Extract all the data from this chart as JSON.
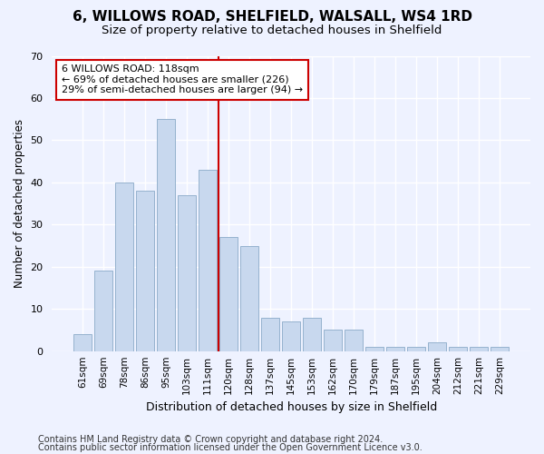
{
  "title1": "6, WILLOWS ROAD, SHELFIELD, WALSALL, WS4 1RD",
  "title2": "Size of property relative to detached houses in Shelfield",
  "xlabel": "Distribution of detached houses by size in Shelfield",
  "ylabel": "Number of detached properties",
  "categories": [
    "61sqm",
    "69sqm",
    "78sqm",
    "86sqm",
    "95sqm",
    "103sqm",
    "111sqm",
    "120sqm",
    "128sqm",
    "137sqm",
    "145sqm",
    "153sqm",
    "162sqm",
    "170sqm",
    "179sqm",
    "187sqm",
    "195sqm",
    "204sqm",
    "212sqm",
    "221sqm",
    "229sqm"
  ],
  "values": [
    4,
    19,
    40,
    38,
    55,
    37,
    43,
    27,
    25,
    8,
    7,
    8,
    5,
    5,
    1,
    1,
    1,
    2,
    1,
    1,
    1
  ],
  "bar_color": "#c8d8ee",
  "bar_edgecolor": "#8aaac8",
  "vline_color": "#cc0000",
  "annotation_text": "6 WILLOWS ROAD: 118sqm\n← 69% of detached houses are smaller (226)\n29% of semi-detached houses are larger (94) →",
  "annotation_box_edgecolor": "#cc0000",
  "ylim": [
    0,
    70
  ],
  "yticks": [
    0,
    10,
    20,
    30,
    40,
    50,
    60,
    70
  ],
  "footer1": "Contains HM Land Registry data © Crown copyright and database right 2024.",
  "footer2": "Contains public sector information licensed under the Open Government Licence v3.0.",
  "bg_color": "#eef2ff",
  "grid_color": "#ffffff"
}
